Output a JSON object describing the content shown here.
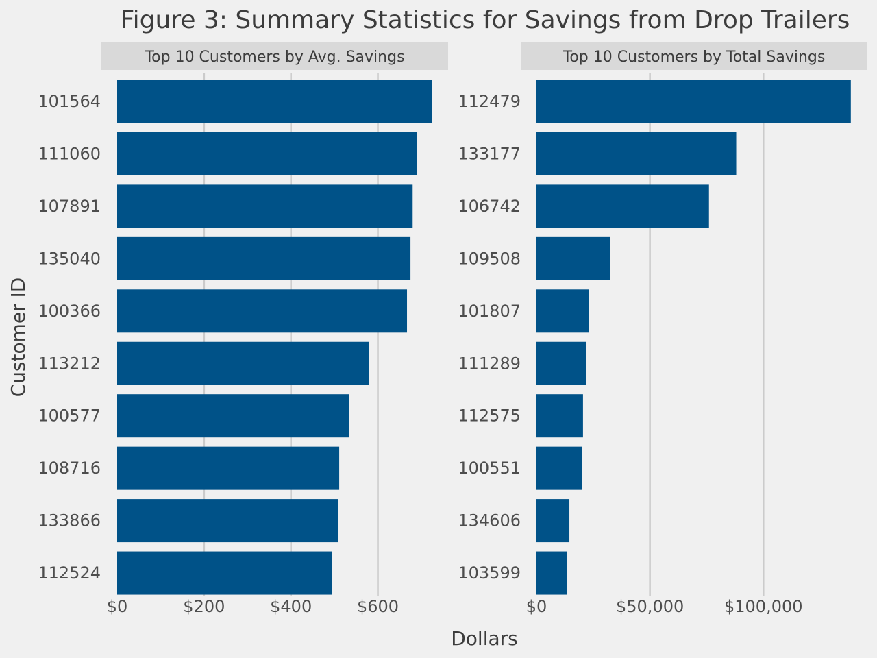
{
  "title": "Figure 3: Summary Statistics for Savings from Drop Trailers",
  "xlabel": "Dollars",
  "ylabel": "Customer ID",
  "colors": {
    "background": "#f0f0f0",
    "bar": "#005288",
    "grid": "#cbcbcb",
    "strip": "#d9d9d9",
    "text": "#3c3c3c"
  },
  "chart_data": [
    {
      "type": "bar",
      "orientation": "horizontal",
      "title": "Top 10 Customers by Avg. Savings",
      "categories": [
        "101564",
        "111060",
        "107891",
        "135040",
        "100366",
        "113212",
        "100577",
        "108716",
        "133866",
        "112524"
      ],
      "values": [
        725,
        690,
        680,
        675,
        667,
        580,
        533,
        511,
        509,
        495
      ],
      "xlim": [
        0,
        760
      ],
      "ticks": [
        0,
        200,
        400,
        600
      ],
      "tick_labels": [
        "$0",
        "$200",
        "$400",
        "$600"
      ],
      "grid": true
    },
    {
      "type": "bar",
      "orientation": "horizontal",
      "title": "Top 10 Customers by Total Savings",
      "categories": [
        "112479",
        "133177",
        "106742",
        "109508",
        "101807",
        "111289",
        "112575",
        "100551",
        "134606",
        "103599"
      ],
      "values": [
        138500,
        88000,
        76000,
        32500,
        23000,
        21800,
        20500,
        20200,
        14500,
        13300
      ],
      "xlim": [
        0,
        145500
      ],
      "ticks": [
        0,
        50000,
        100000
      ],
      "tick_labels": [
        "$0",
        "$50,000",
        "$100,000"
      ],
      "grid": true
    }
  ]
}
